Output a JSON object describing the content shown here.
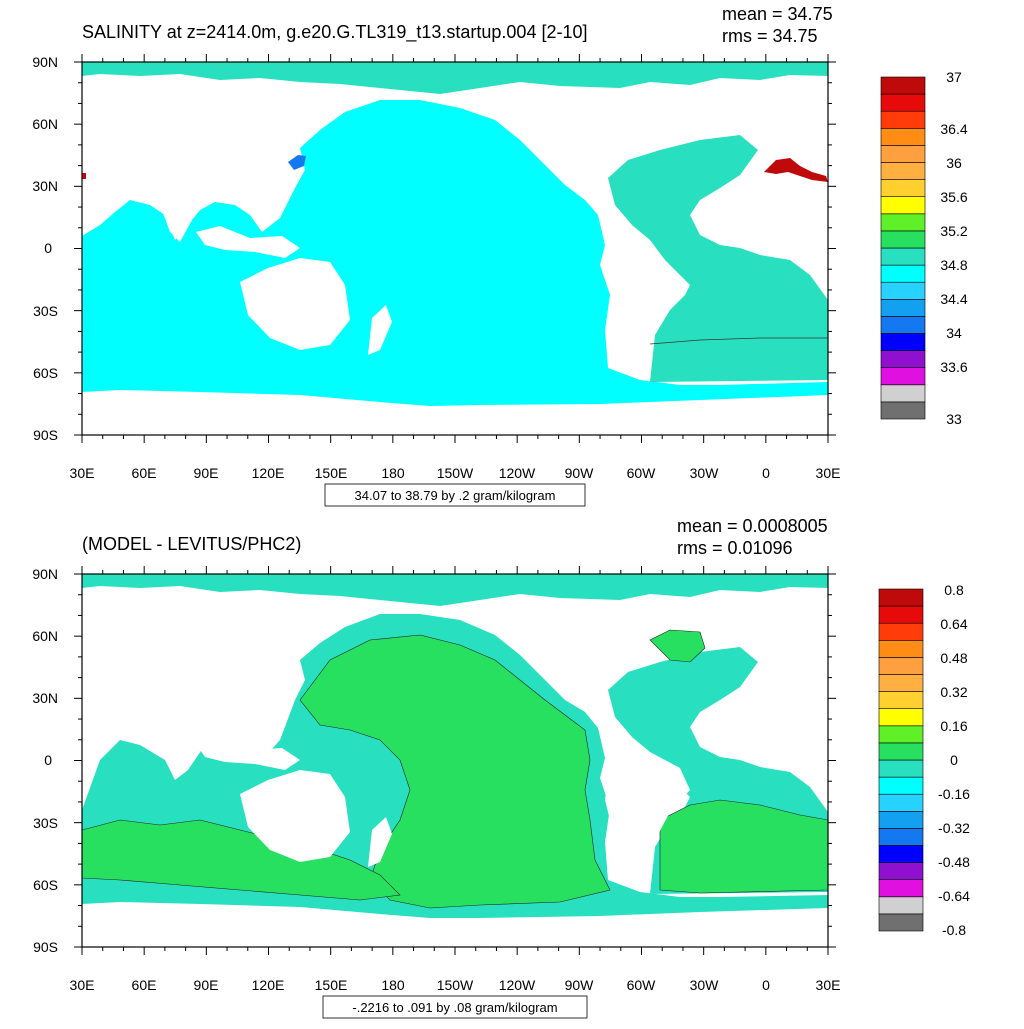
{
  "panels": [
    {
      "id": "top",
      "title": "SALINITY at z=2414.0m, g.e20.G.TL319_t13.startup.004 [2-10]",
      "mean_text": "mean = 34.75",
      "rms_text": "rms = 34.75",
      "range_text": "34.07 to 38.79 by .2 gram/kilogram",
      "y_ticks": [
        "90N",
        "60N",
        "30N",
        "0",
        "30S",
        "60S",
        "90S"
      ],
      "x_ticks": [
        "30E",
        "60E",
        "90E",
        "120E",
        "150E",
        "180",
        "150W",
        "120W",
        "90W",
        "60W",
        "30W",
        "0",
        "30E"
      ],
      "colorbar_colors": [
        "#707070",
        "#d0d0d0",
        "#e010e0",
        "#9010d0",
        "#0000ff",
        "#1478f0",
        "#14a0f0",
        "#28d2ff",
        "#00ffff",
        "#28e0c0",
        "#28e060",
        "#60f028",
        "#ffff00",
        "#ffd030",
        "#ffb040",
        "#ffa040",
        "#ff8c14",
        "#ff3c0a",
        "#e60a0a",
        "#be0a0a"
      ],
      "colorbar_labels": [
        "37",
        "36.4",
        "36",
        "35.6",
        "35.2",
        "34.8",
        "34.4",
        "34",
        "33.6",
        "33"
      ]
    },
    {
      "id": "bottom",
      "title": "(MODEL - LEVITUS/PHC2)",
      "mean_text": "mean = 0.0008005",
      "rms_text": "rms = 0.01096",
      "range_text": "-.2216 to .091 by .08 gram/kilogram",
      "y_ticks": [
        "90N",
        "60N",
        "30N",
        "0",
        "30S",
        "60S",
        "90S"
      ],
      "x_ticks": [
        "30E",
        "60E",
        "90E",
        "120E",
        "150E",
        "180",
        "150W",
        "120W",
        "90W",
        "60W",
        "30W",
        "0",
        "30E"
      ],
      "colorbar_colors": [
        "#707070",
        "#d0d0d0",
        "#e010e0",
        "#9010d0",
        "#0000ff",
        "#1478f0",
        "#14a0f0",
        "#28d2ff",
        "#00ffff",
        "#28e0c0",
        "#28e060",
        "#60f028",
        "#ffff00",
        "#ffd030",
        "#ffb040",
        "#ffa040",
        "#ff8c14",
        "#ff3c0a",
        "#e60a0a",
        "#be0a0a"
      ],
      "colorbar_labels": [
        "0.8",
        "0.64",
        "0.48",
        "0.32",
        "0.16",
        "0",
        "-0.16",
        "-0.32",
        "-0.48",
        "-0.64",
        "-0.8"
      ]
    }
  ],
  "colors": {
    "ocean_top": "#00ffff",
    "atlantic_top": "#28e0c0",
    "ocean_bottom_green": "#28e060",
    "ocean_bottom_cyan": "#28e0c0",
    "ocean_bottom_light": "#00ffff",
    "land": "#ffffff",
    "med_high": "#be0a0a",
    "labrador_blue": "#1478f0"
  }
}
